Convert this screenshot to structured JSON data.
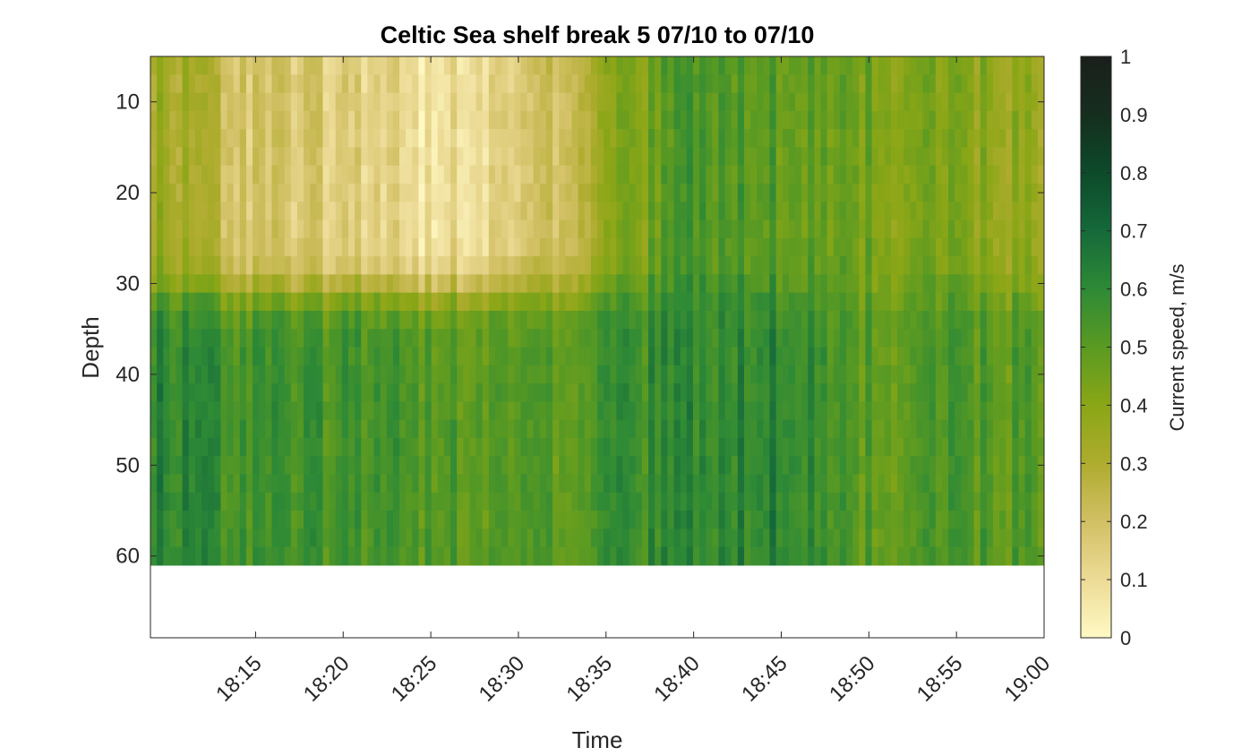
{
  "chart_data": {
    "type": "heatmap",
    "title": "Celtic Sea shelf break 5 07/10 to 07/10",
    "xlabel": "Time",
    "ylabel": "Depth",
    "colorbar_label": "Current speed, m/s",
    "x_range": [
      "18:09",
      "19:00"
    ],
    "y_range": [
      5,
      69
    ],
    "y_reversed": true,
    "data_depth_range": [
      5,
      61
    ],
    "x_ticks": [
      "18:15",
      "18:20",
      "18:25",
      "18:30",
      "18:35",
      "18:40",
      "18:45",
      "18:50",
      "18:55",
      "19:00"
    ],
    "y_ticks": [
      10,
      20,
      30,
      40,
      50,
      60
    ],
    "color_range": [
      0,
      1
    ],
    "colorbar_ticks": [
      "0",
      "0.1",
      "0.2",
      "0.3",
      "0.4",
      "0.5",
      "0.6",
      "0.7",
      "0.8",
      "0.9",
      "1"
    ],
    "colormap": [
      "#fff9c4",
      "#ecdb96",
      "#d2c064",
      "#aeac2e",
      "#8aa616",
      "#5a9a22",
      "#2e8a36",
      "#15693a",
      "#0d4a2a",
      "#152e1e",
      "#1b1f1b"
    ],
    "approx_speed_by_time": {
      "time": [
        "18:10",
        "18:15",
        "18:20",
        "18:25",
        "18:30",
        "18:35",
        "18:40",
        "18:45",
        "18:50",
        "18:55",
        "19:00"
      ],
      "surface_0_30m": [
        0.35,
        0.18,
        0.15,
        0.08,
        0.12,
        0.35,
        0.55,
        0.5,
        0.45,
        0.4,
        0.35
      ],
      "bottom_30_61m": [
        0.62,
        0.55,
        0.55,
        0.52,
        0.48,
        0.55,
        0.6,
        0.62,
        0.5,
        0.52,
        0.5
      ]
    }
  }
}
